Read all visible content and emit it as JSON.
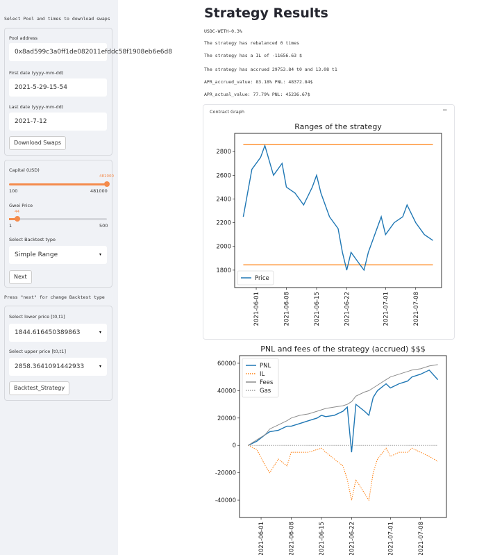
{
  "sidebar": {
    "download_heading": "Select Pool and times to download swaps",
    "pool_label": "Pool address",
    "pool_value": "0x8ad599c3a0ff1de082011efddc58f1908eb6e6d8",
    "first_date_label": "First date (yyyy-mm-dd)",
    "first_date_value": "2021-5-29-15-54",
    "last_date_label": "Last date (yyyy-mm-dd)",
    "last_date_value": "2021-7-12",
    "download_button": "Download Swaps",
    "capital_label": "Capital (USD)",
    "capital_value": "481000",
    "capital_min": "100",
    "capital_max": "481000",
    "gwei_label": "Gwei Price",
    "gwei_value": "44",
    "gwei_min": "1",
    "gwei_max": "500",
    "backtest_type_label": "Select Backtest type",
    "backtest_type_value": "Simple Range",
    "next_button": "Next",
    "next_hint": "Press \"next\" for change Backtest type",
    "lower_label": "Select lower price [t0,t1]",
    "lower_value": "1844.616450389863",
    "upper_label": "Select upper price [t0,t1]",
    "upper_value": "2858.3641091442933",
    "backtest_button": "Backtest_Strategy"
  },
  "main": {
    "title": "Strategy Results",
    "pool": "USDC-WETH-0.3%",
    "lines": [
      "The strategy has rebalanced 0 times",
      "The strategy has a IL of -11656.63 $",
      "The strategy has accrued 29753.84 t0 and 13.08 t1",
      "APR_accrued_value: 83.18% PNL: 48372.84$",
      "APR_actual_value: 77.79% PNL: 45236.67$"
    ],
    "expander": "Contract Graph",
    "expander_toggle": "−"
  },
  "charts": [
    {
      "type": "line",
      "title": "Ranges of the strategy",
      "x": [
        "2021-05-29",
        "2021-05-31",
        "2021-06-02",
        "2021-06-03",
        "2021-06-05",
        "2021-06-07",
        "2021-06-08",
        "2021-06-10",
        "2021-06-12",
        "2021-06-14",
        "2021-06-15",
        "2021-06-16",
        "2021-06-18",
        "2021-06-20",
        "2021-06-21",
        "2021-06-22",
        "2021-06-23",
        "2021-06-25",
        "2021-06-26",
        "2021-06-27",
        "2021-06-28",
        "2021-06-30",
        "2021-07-01",
        "2021-07-03",
        "2021-07-05",
        "2021-07-06",
        "2021-07-08",
        "2021-07-10",
        "2021-07-12"
      ],
      "series": [
        {
          "name": "Price",
          "color": "#1f77b4",
          "values": [
            2250,
            2650,
            2750,
            2850,
            2600,
            2700,
            2500,
            2450,
            2350,
            2500,
            2600,
            2450,
            2250,
            2150,
            1950,
            1800,
            1950,
            1850,
            1800,
            1950,
            2050,
            2250,
            2100,
            2200,
            2250,
            2350,
            2200,
            2100,
            2050
          ]
        }
      ],
      "hlines": [
        1844.616450389863,
        2858.3641091442933
      ],
      "hline_color": "#ff7f0e",
      "xlim": [
        "2021-05-27",
        "2021-07-14"
      ],
      "xticks": [
        "2021-06-01",
        "2021-06-08",
        "2021-06-15",
        "2021-06-22",
        "2021-07-01",
        "2021-07-08"
      ],
      "ylim": [
        1653,
        2953
      ],
      "yticks": [
        1800,
        2000,
        2200,
        2400,
        2600,
        2800
      ],
      "legend": "lower left"
    },
    {
      "type": "line",
      "title": "PNL and fees of the strategy (accrued) $$$",
      "x": [
        "2021-05-29",
        "2021-05-31",
        "2021-06-02",
        "2021-06-03",
        "2021-06-05",
        "2021-06-07",
        "2021-06-08",
        "2021-06-10",
        "2021-06-12",
        "2021-06-14",
        "2021-06-15",
        "2021-06-16",
        "2021-06-18",
        "2021-06-20",
        "2021-06-21",
        "2021-06-22",
        "2021-06-23",
        "2021-06-25",
        "2021-06-26",
        "2021-06-27",
        "2021-06-28",
        "2021-06-30",
        "2021-07-01",
        "2021-07-03",
        "2021-07-05",
        "2021-07-06",
        "2021-07-08",
        "2021-07-10",
        "2021-07-12"
      ],
      "series": [
        {
          "name": "PNL",
          "color": "#1f77b4",
          "values": [
            0,
            3000,
            8000,
            10000,
            11000,
            14000,
            14000,
            16000,
            18000,
            20000,
            22000,
            21000,
            22000,
            25000,
            28000,
            -5000,
            30000,
            25000,
            22000,
            35000,
            40000,
            45000,
            42000,
            45000,
            47000,
            50000,
            52000,
            55000,
            48000
          ]
        },
        {
          "name": "IL",
          "color": "#ff7f0e",
          "linestyle": "dotted",
          "values": [
            0,
            -3000,
            -15000,
            -20000,
            -10000,
            -15000,
            -5000,
            -5000,
            -5000,
            -3000,
            -2000,
            -5000,
            -10000,
            -15000,
            -25000,
            -40000,
            -25000,
            -35000,
            -40000,
            -20000,
            -10000,
            -2000,
            -8000,
            -5000,
            -5000,
            -2000,
            -5000,
            -8000,
            -11656
          ]
        },
        {
          "name": "Fees",
          "color": "#8c8c8c",
          "values": [
            0,
            4000,
            8000,
            12000,
            15000,
            18000,
            20000,
            22000,
            23000,
            25000,
            26000,
            27000,
            28000,
            29000,
            30000,
            32000,
            36000,
            39000,
            40000,
            42000,
            44000,
            48000,
            50000,
            52000,
            54000,
            55000,
            56000,
            58000,
            59000
          ]
        },
        {
          "name": "Gas",
          "color": "#999999",
          "linestyle": "dotted",
          "values": [
            0,
            0,
            0,
            0,
            0,
            0,
            0,
            0,
            0,
            0,
            0,
            0,
            0,
            0,
            0,
            0,
            0,
            0,
            0,
            0,
            0,
            0,
            0,
            0,
            0,
            0,
            0,
            0,
            0
          ]
        }
      ],
      "xlim": [
        "2021-05-27",
        "2021-07-14"
      ],
      "xticks": [
        "2021-06-01",
        "2021-06-08",
        "2021-06-15",
        "2021-06-22",
        "2021-07-01",
        "2021-07-08"
      ],
      "ylim": [
        -52660,
        65570
      ],
      "yticks": [
        -40000,
        -20000,
        0,
        20000,
        40000,
        60000
      ],
      "legend": "upper left"
    }
  ]
}
